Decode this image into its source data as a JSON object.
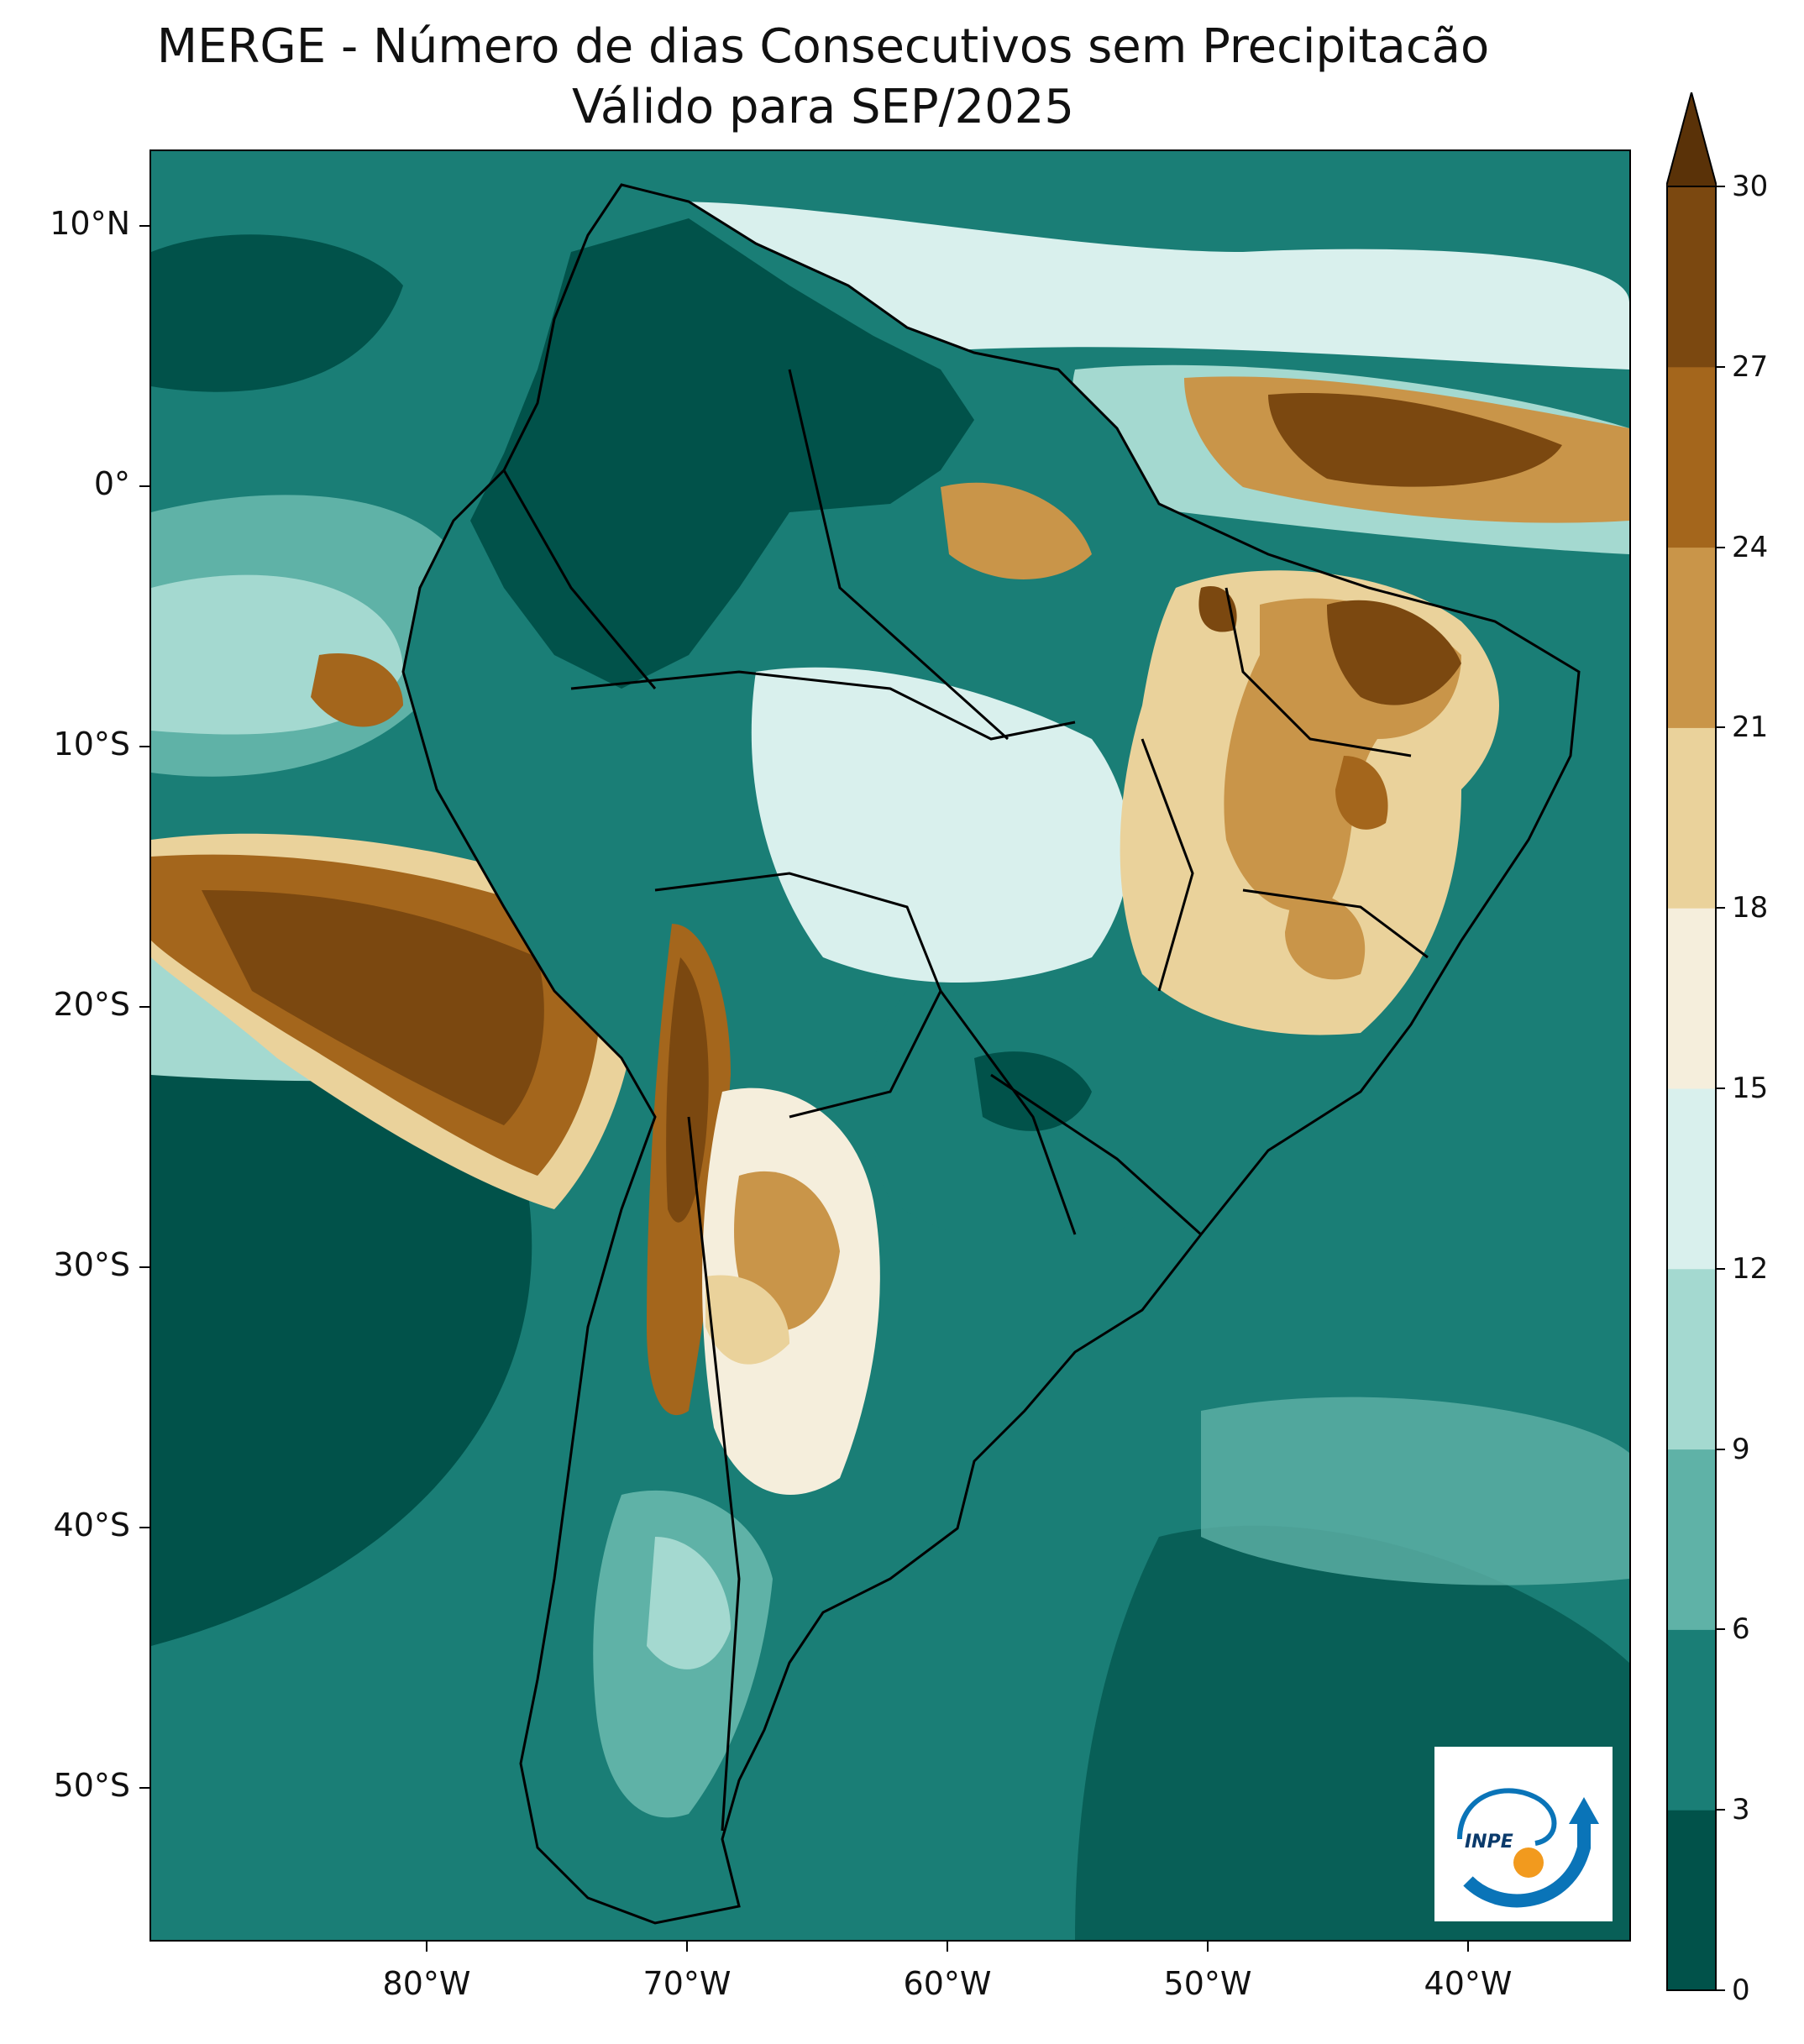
{
  "title": {
    "line1": "MERGE - Número de dias Consecutivos sem Precipitacão",
    "line2": "Válido para SEP/2025"
  },
  "axes": {
    "lat_labels": [
      "10°N",
      "0°",
      "10°S",
      "20°S",
      "30°S",
      "40°S",
      "50°S"
    ],
    "lon_labels": [
      "80°W",
      "70°W",
      "60°W",
      "50°W",
      "40°W"
    ]
  },
  "colorbar": {
    "ticks": [
      "0",
      "3",
      "6",
      "9",
      "12",
      "15",
      "18",
      "21",
      "24",
      "27",
      "30"
    ],
    "colors": [
      "#01524a",
      "#1a7e76",
      "#5fb2a7",
      "#a4d9d0",
      "#d9f0ed",
      "#f5eedc",
      "#ead29b",
      "#c99549",
      "#a4661c",
      "#7b4810",
      "#5a3208"
    ],
    "extend": "max"
  },
  "logo": {
    "text": "INPE",
    "colors": {
      "arc": "#0a74b8",
      "dot": "#f29a1e"
    }
  }
}
